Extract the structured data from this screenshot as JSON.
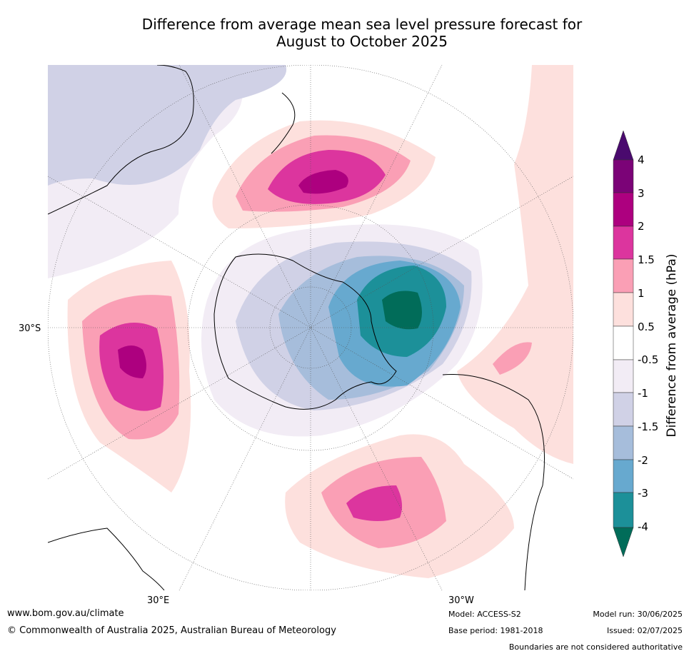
{
  "title": {
    "line1": "Difference from average mean sea level pressure forecast for",
    "line2": "August to October 2025"
  },
  "map": {
    "projection": "south-polar-stereographic",
    "labels": {
      "lat_30s": "30°S",
      "lon_30e": "30°E",
      "lon_30w": "30°W"
    }
  },
  "colorbar": {
    "title": "Difference from average (hPa)",
    "levels": [
      "4",
      "3",
      "2",
      "1.5",
      "1",
      "0.5",
      "-0.5",
      "-1",
      "-1.5",
      "-2",
      "-3",
      "-4"
    ],
    "colors": {
      "gt4": "#4a0a6e",
      "3_4": "#7b0377",
      "2_3": "#ad007f",
      "1.5_2": "#dc359e",
      "1_1.5": "#fa9fb5",
      "0.5_1": "#fde0dd",
      "neutral": "#ffffff",
      "m1_m0.5": "#f2ecf5",
      "m1.5_m1": "#d0d1e6",
      "m2_m1.5": "#a6bddb",
      "m3_m2": "#67a9cf",
      "m4_m3": "#1c9099",
      "lt_m4": "#016c59"
    }
  },
  "footer": {
    "website": "www.bom.gov.au/climate",
    "copyright": "© Commonwealth of Australia 2025, Australian Bureau of Meteorology",
    "model": "Model: ACCESS-S2",
    "base_period": "Base period: 1981-2018",
    "model_run": "Model run: 30/06/2025",
    "issued": "Issued: 02/07/2025",
    "disclaimer": "Boundaries are not considered authoritative"
  }
}
